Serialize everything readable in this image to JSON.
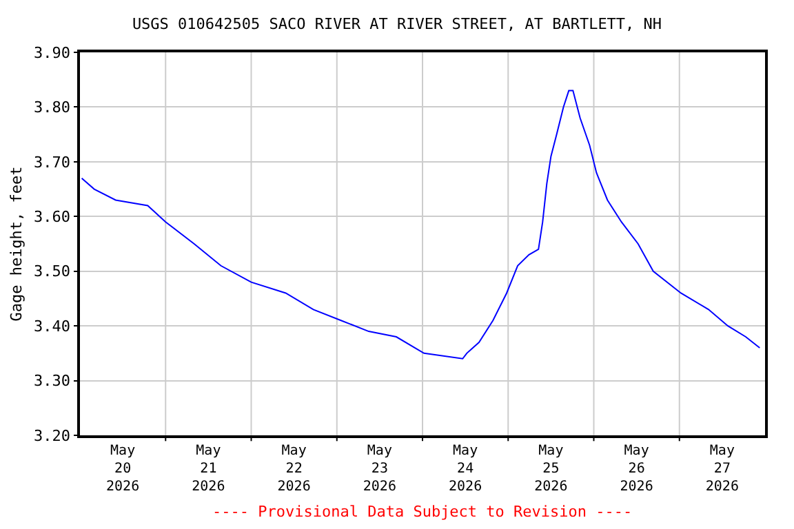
{
  "chart_data": {
    "type": "line",
    "title": "USGS 010642505 SACO RIVER AT RIVER STREET, AT BARTLETT, NH",
    "ylabel": "Gage height, feet",
    "x": [
      "2026-05-20T00:30",
      "2026-05-20T04:00",
      "2026-05-20T10:00",
      "2026-05-20T19:00",
      "2026-05-21T00:00",
      "2026-05-21T08:00",
      "2026-05-21T15:30",
      "2026-05-22T00:00",
      "2026-05-22T09:40",
      "2026-05-22T17:25",
      "2026-05-23T01:10",
      "2026-05-23T08:55",
      "2026-05-23T16:40",
      "2026-05-24T00:25",
      "2026-05-24T11:15",
      "2026-05-24T12:25",
      "2026-05-24T15:50",
      "2026-05-24T19:45",
      "2026-05-24T23:35",
      "2026-05-25T02:40",
      "2026-05-25T05:50",
      "2026-05-25T08:30",
      "2026-05-25T09:40",
      "2026-05-25T10:50",
      "2026-05-25T12:00",
      "2026-05-25T13:35",
      "2026-05-25T15:30",
      "2026-05-25T17:00",
      "2026-05-25T18:10",
      "2026-05-25T20:10",
      "2026-05-25T22:50",
      "2026-05-26T00:45",
      "2026-05-26T03:50",
      "2026-05-26T07:45",
      "2026-05-26T12:25",
      "2026-05-26T16:40",
      "2026-05-27T00:25",
      "2026-05-27T08:10",
      "2026-05-27T13:35",
      "2026-05-27T18:35",
      "2026-05-27T22:30"
    ],
    "series": [
      {
        "color": "#0000ff",
        "values": [
          3.67,
          3.65,
          3.63,
          3.62,
          3.59,
          3.55,
          3.51,
          3.48,
          3.46,
          3.43,
          3.41,
          3.39,
          3.38,
          3.35,
          3.34,
          3.35,
          3.37,
          3.41,
          3.46,
          3.51,
          3.53,
          3.54,
          3.59,
          3.66,
          3.71,
          3.75,
          3.8,
          3.83,
          3.83,
          3.78,
          3.73,
          3.68,
          3.63,
          3.59,
          3.55,
          3.5,
          3.46,
          3.43,
          3.4,
          3.38,
          3.36
        ]
      }
    ],
    "xlim": [
      "2026-05-20T00:00",
      "2026-05-28T00:00"
    ],
    "xticks": [
      {
        "value": "2026-05-20T12:00",
        "label": "May\n20\n2026"
      },
      {
        "value": "2026-05-21T12:00",
        "label": "May\n21\n2026"
      },
      {
        "value": "2026-05-22T12:00",
        "label": "May\n22\n2026"
      },
      {
        "value": "2026-05-23T12:00",
        "label": "May\n23\n2026"
      },
      {
        "value": "2026-05-24T12:00",
        "label": "May\n24\n2026"
      },
      {
        "value": "2026-05-25T12:00",
        "label": "May\n25\n2026"
      },
      {
        "value": "2026-05-26T12:00",
        "label": "May\n26\n2026"
      },
      {
        "value": "2026-05-27T12:00",
        "label": "May\n27\n2026"
      },
      {
        "value": "2026-05-21T00:00",
        "label": null
      },
      {
        "value": "2026-05-22T00:00",
        "label": null
      },
      {
        "value": "2026-05-23T00:00",
        "label": null
      },
      {
        "value": "2026-05-24T00:00",
        "label": null
      },
      {
        "value": "2026-05-25T00:00",
        "label": null
      },
      {
        "value": "2026-05-26T00:00",
        "label": null
      },
      {
        "value": "2026-05-27T00:00",
        "label": null
      }
    ],
    "ylim": [
      3.2,
      3.9
    ],
    "yticks": [
      {
        "value": 3.2,
        "label": "3.20"
      },
      {
        "value": 3.3,
        "label": "3.30"
      },
      {
        "value": 3.4,
        "label": "3.40"
      },
      {
        "value": 3.5,
        "label": "3.50"
      },
      {
        "value": 3.6,
        "label": "3.60"
      },
      {
        "value": 3.7,
        "label": "3.70"
      },
      {
        "value": 3.8,
        "label": "3.80"
      },
      {
        "value": 3.9,
        "label": "3.90"
      }
    ],
    "grid": true,
    "annotations": [
      "---- Provisional Data Subject to Revision ----"
    ]
  }
}
